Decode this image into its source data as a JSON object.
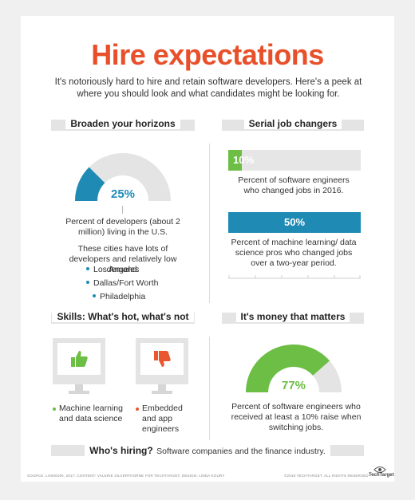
{
  "title": "Hire expectations",
  "intro": "It's notoriously hard to hire and retain software developers. Here's a peek at where you should look and what candidates might be looking for.",
  "sections": {
    "horizons": {
      "heading": "Broaden your horizons",
      "gauge_value": 25,
      "gauge_label": "25%",
      "caption": "Percent of developers (about 2 million) living in the U.S.",
      "cities_intro": "These cities have lots of developers and relatively low demand:",
      "cities": [
        "Los Angeles",
        "Dallas/Fort Worth",
        "Philadelphia"
      ]
    },
    "job_changers": {
      "heading": "Serial job changers",
      "bar1": {
        "value": 10,
        "label": "10%",
        "caption": "Percent of software engineers who changed jobs in 2016."
      },
      "bar2": {
        "value": 50,
        "label": "50%",
        "caption": "Percent of machine learning/ data science pros who changed jobs over a two-year period."
      }
    },
    "skills": {
      "heading": "Skills: What's hot, what's not",
      "hot": {
        "icon": "thumbs-up-icon",
        "label": "Machine learning and data science"
      },
      "not": {
        "icon": "thumbs-down-icon",
        "label": "Embedded and app engineers"
      }
    },
    "money": {
      "heading": "It's money that matters",
      "gauge_value": 77,
      "gauge_label": "77%",
      "caption": "Percent of software engineers who received at least a 10% raise when switching jobs."
    }
  },
  "hiring": {
    "label": "Who's hiring?",
    "text": "Software companies and the finance industry."
  },
  "footer": {
    "sources": "SOURCE: LINKEDIN, 2017; CONTENT: VALERIE SILVERTHORNE FOR TECHTARGET; DESIGN: LINDA KOURY",
    "copyright": "©2018 TECHTARGET. ALL RIGHTS RESERVED",
    "brand": "TechTarget"
  },
  "colors": {
    "accent_orange": "#e8502a",
    "teal": "#1f8bb5",
    "green": "#6cbe45",
    "red_orange": "#e8572e",
    "gray": "#e4e4e4"
  }
}
